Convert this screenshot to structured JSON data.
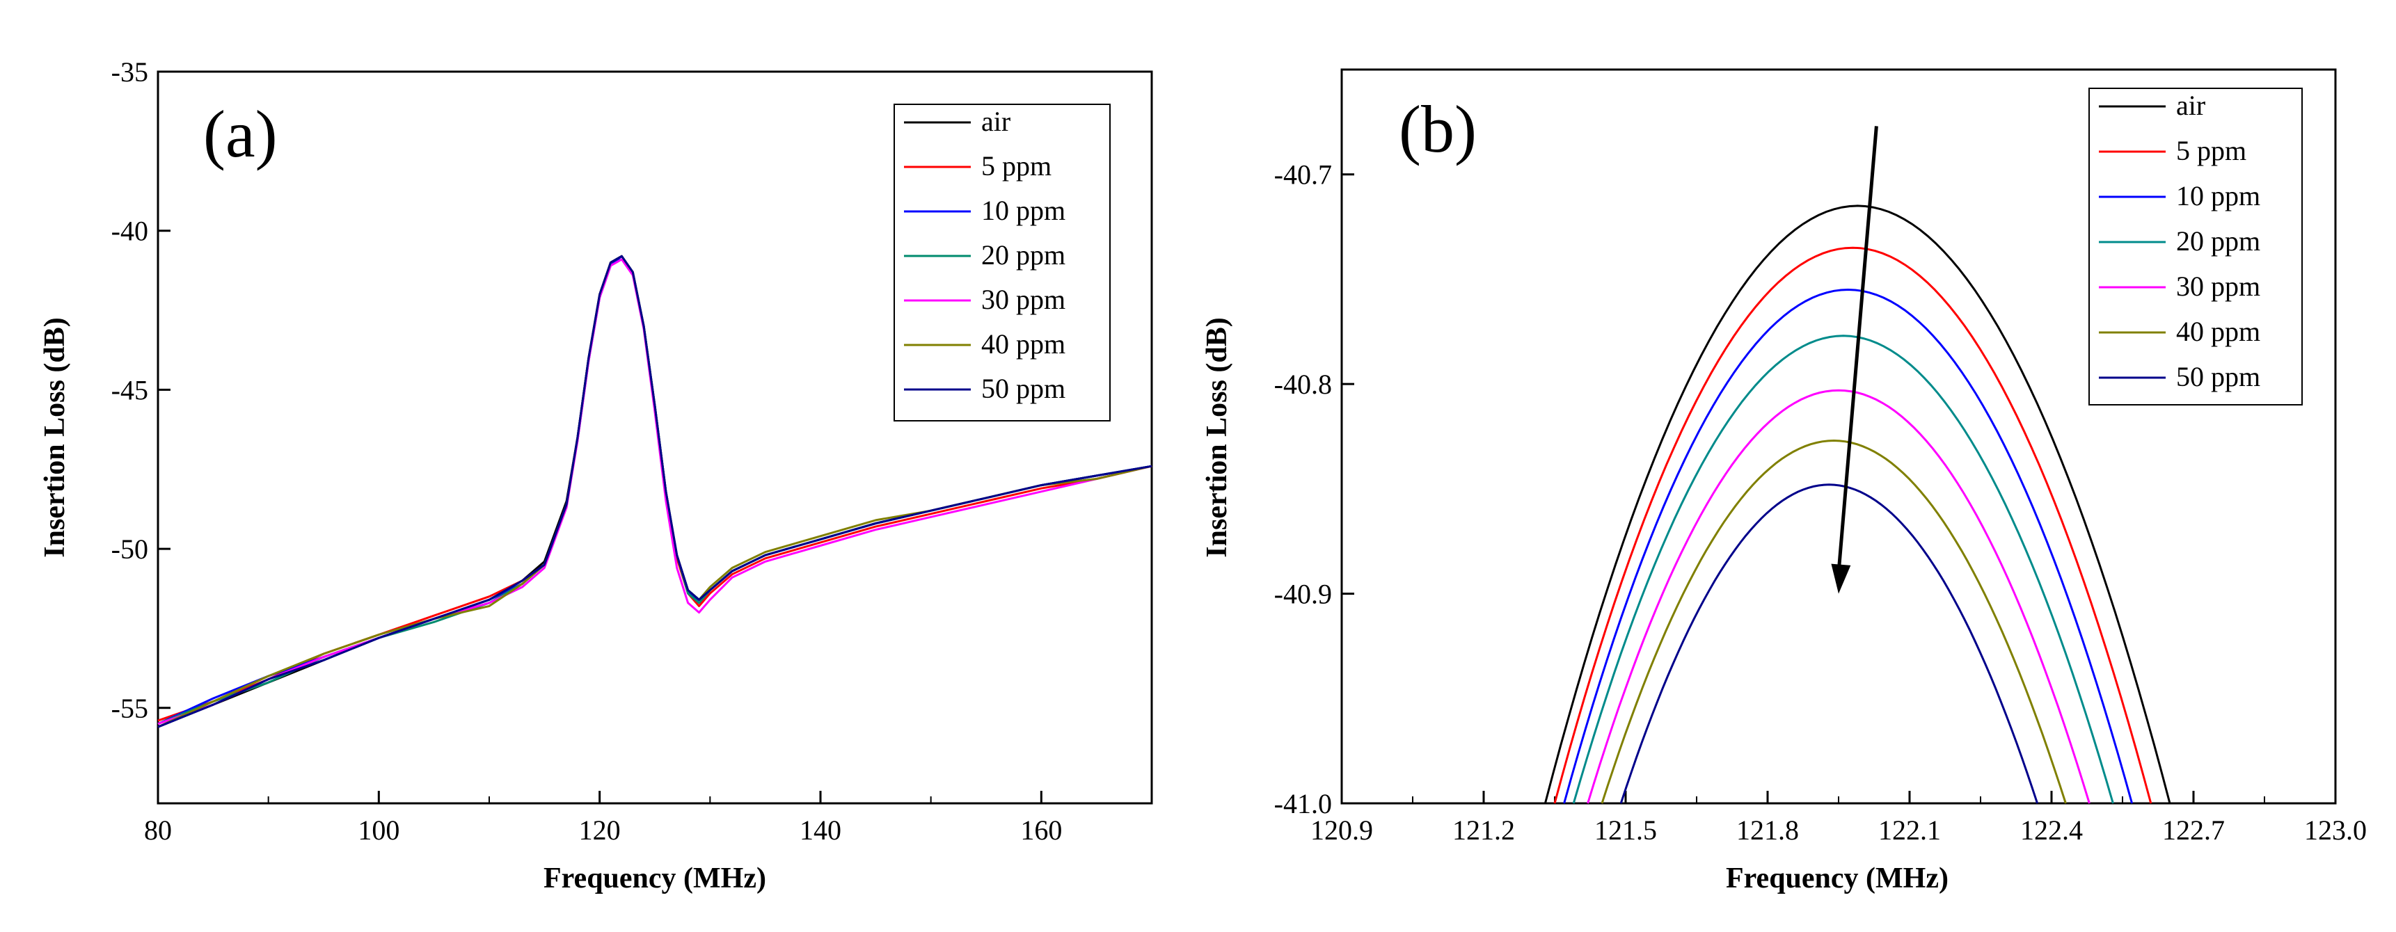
{
  "chart_data": [
    {
      "type": "line",
      "panel_label": "(a)",
      "xlabel": "Frequency (MHz)",
      "ylabel": "Insertion Loss (dB)",
      "xlim": [
        80,
        170
      ],
      "ylim": [
        -58,
        -35
      ],
      "xticks": [
        80,
        100,
        120,
        140,
        160
      ],
      "xtick_labels": [
        "80",
        "100",
        "120",
        "140",
        "160"
      ],
      "yticks": [
        -35,
        -40,
        -45,
        -50,
        -55
      ],
      "ytick_labels": [
        "-35",
        "-40",
        "-45",
        "-50",
        "-55"
      ],
      "legend_position": "top-right",
      "x": [
        80,
        85,
        90,
        95,
        100,
        105,
        110,
        113,
        115,
        117,
        118,
        119,
        120,
        121,
        122,
        123,
        124,
        125,
        126,
        127,
        128,
        129,
        130,
        132,
        135,
        140,
        145,
        150,
        155,
        160,
        165,
        170
      ],
      "series": [
        {
          "name": "air",
          "color": "#000000",
          "values": [
            -55.6,
            -54.9,
            -54.2,
            -53.5,
            -52.8,
            -52.2,
            -51.6,
            -51.0,
            -50.4,
            -48.5,
            -46.5,
            -44.0,
            -42.0,
            -41.0,
            -40.8,
            -41.3,
            -43.0,
            -45.5,
            -48.2,
            -50.2,
            -51.3,
            -51.6,
            -51.3,
            -50.7,
            -50.2,
            -49.7,
            -49.2,
            -48.8,
            -48.4,
            -48.0,
            -47.7,
            -47.4
          ]
        },
        {
          "name": "5 ppm",
          "color": "#ff0000",
          "values": [
            -55.4,
            -54.8,
            -54.1,
            -53.3,
            -52.7,
            -52.1,
            -51.5,
            -51.0,
            -50.5,
            -48.6,
            -46.5,
            -44.0,
            -42.0,
            -41.0,
            -40.8,
            -41.3,
            -43.0,
            -45.6,
            -48.3,
            -50.3,
            -51.4,
            -51.8,
            -51.4,
            -50.8,
            -50.3,
            -49.8,
            -49.3,
            -48.9,
            -48.5,
            -48.1,
            -47.8,
            -47.4
          ]
        },
        {
          "name": "10 ppm",
          "color": "#0000ff",
          "values": [
            -55.5,
            -54.7,
            -54.0,
            -53.4,
            -52.8,
            -52.2,
            -51.6,
            -51.1,
            -50.5,
            -48.6,
            -46.6,
            -44.1,
            -42.1,
            -41.1,
            -40.8,
            -41.3,
            -43.0,
            -45.5,
            -48.2,
            -50.2,
            -51.3,
            -51.7,
            -51.3,
            -50.7,
            -50.2,
            -49.7,
            -49.2,
            -48.8,
            -48.4,
            -48.0,
            -47.7,
            -47.4
          ]
        },
        {
          "name": "20 ppm",
          "color": "#008b6e",
          "values": [
            -55.5,
            -54.8,
            -54.2,
            -53.4,
            -52.8,
            -52.3,
            -51.7,
            -51.1,
            -50.5,
            -48.6,
            -46.5,
            -44.0,
            -42.0,
            -41.0,
            -40.8,
            -41.3,
            -43.0,
            -45.5,
            -48.2,
            -50.2,
            -51.4,
            -51.7,
            -51.3,
            -50.7,
            -50.2,
            -49.7,
            -49.2,
            -48.8,
            -48.4,
            -48.0,
            -47.7,
            -47.4
          ]
        },
        {
          "name": "30 ppm",
          "color": "#ff00ff",
          "values": [
            -55.5,
            -54.9,
            -54.1,
            -53.4,
            -52.8,
            -52.2,
            -51.7,
            -51.2,
            -50.6,
            -48.7,
            -46.6,
            -44.1,
            -42.1,
            -41.1,
            -40.9,
            -41.4,
            -43.1,
            -45.7,
            -48.5,
            -50.6,
            -51.7,
            -52.0,
            -51.6,
            -50.9,
            -50.4,
            -49.9,
            -49.4,
            -49.0,
            -48.6,
            -48.2,
            -47.8,
            -47.4
          ]
        },
        {
          "name": "40 ppm",
          "color": "#808000",
          "values": [
            -55.6,
            -54.8,
            -54.0,
            -53.3,
            -52.7,
            -52.2,
            -51.8,
            -51.1,
            -50.5,
            -48.6,
            -46.5,
            -44.0,
            -42.0,
            -41.0,
            -40.8,
            -41.3,
            -43.0,
            -45.5,
            -48.2,
            -50.2,
            -51.3,
            -51.6,
            -51.2,
            -50.6,
            -50.1,
            -49.6,
            -49.1,
            -48.8,
            -48.4,
            -48.0,
            -47.8,
            -47.4
          ]
        },
        {
          "name": "50 ppm",
          "color": "#00008b",
          "values": [
            -55.6,
            -54.9,
            -54.1,
            -53.5,
            -52.8,
            -52.2,
            -51.6,
            -51.0,
            -50.5,
            -48.6,
            -46.5,
            -44.0,
            -42.0,
            -41.0,
            -40.8,
            -41.3,
            -43.0,
            -45.5,
            -48.2,
            -50.2,
            -51.3,
            -51.6,
            -51.3,
            -50.7,
            -50.2,
            -49.7,
            -49.2,
            -48.8,
            -48.4,
            -48.0,
            -47.7,
            -47.4
          ]
        }
      ]
    },
    {
      "type": "line",
      "panel_label": "(b)",
      "xlabel": "Frequency (MHz)",
      "ylabel": "Insertion Loss (dB)",
      "xlim": [
        120.9,
        123.0
      ],
      "ylim": [
        -41.0,
        -40.65
      ],
      "xticks": [
        120.9,
        121.2,
        121.5,
        121.8,
        122.1,
        122.4,
        122.7,
        123.0
      ],
      "xtick_labels": [
        "120.9",
        "121.2",
        "121.5",
        "121.8",
        "122.1",
        "122.4",
        "122.7",
        "123.0"
      ],
      "yticks": [
        -40.7,
        -40.8,
        -40.9,
        -41.0
      ],
      "ytick_labels": [
        "-40.7",
        "-40.8",
        "-40.9",
        "-41.0"
      ],
      "legend_position": "top-right",
      "annotation": "arrow indicating decreasing peak with increasing concentration",
      "arrow_start": [
        122.03,
        -40.677
      ],
      "arrow_end": [
        121.95,
        -40.9
      ],
      "peaks": [
        {
          "name": "air",
          "color": "#000000",
          "center_mhz": 121.99,
          "peak_db": -40.715
        },
        {
          "name": "5 ppm",
          "color": "#ff0000",
          "center_mhz": 121.98,
          "peak_db": -40.735
        },
        {
          "name": "10 ppm",
          "color": "#0000ff",
          "center_mhz": 121.97,
          "peak_db": -40.755
        },
        {
          "name": "20 ppm",
          "color": "#008b8b",
          "center_mhz": 121.96,
          "peak_db": -40.777
        },
        {
          "name": "30 ppm",
          "color": "#ff00ff",
          "center_mhz": 121.95,
          "peak_db": -40.803
        },
        {
          "name": "40 ppm",
          "color": "#808000",
          "center_mhz": 121.94,
          "peak_db": -40.827
        },
        {
          "name": "50 ppm",
          "color": "#00008b",
          "center_mhz": 121.93,
          "peak_db": -40.848
        }
      ],
      "x_at_floor_left": [
        121.33,
        121.35,
        121.37,
        121.39,
        121.42,
        121.45,
        121.49
      ]
    }
  ]
}
